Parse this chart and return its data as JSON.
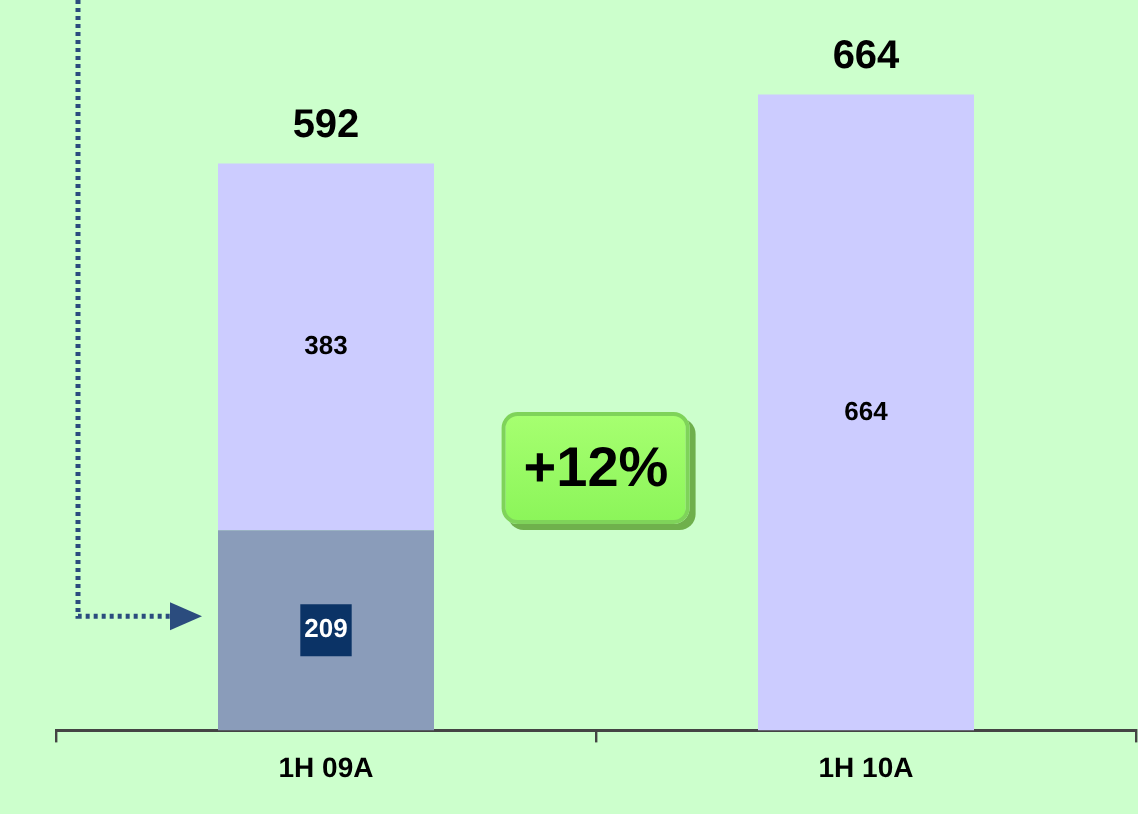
{
  "chart_data": {
    "type": "bar",
    "categories": [
      "1H 09A",
      "1H 10A"
    ],
    "series": [
      {
        "color": "#8a9cba",
        "values": [
          209,
          null
        ]
      },
      {
        "color": "#ccccff",
        "values": [
          383,
          664
        ]
      }
    ],
    "stacked": true,
    "data_labels": true,
    "totals": [
      "592",
      "664"
    ],
    "annotations": [
      "+12%"
    ]
  }
}
